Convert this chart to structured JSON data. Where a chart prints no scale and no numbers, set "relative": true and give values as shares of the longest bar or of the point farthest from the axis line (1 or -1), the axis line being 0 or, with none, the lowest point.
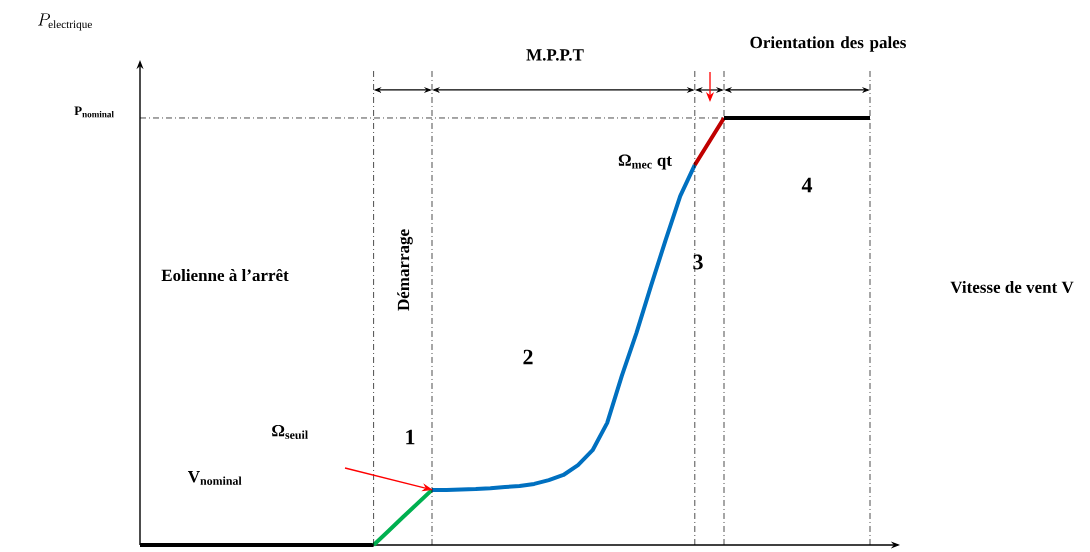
{
  "chart_data": {
    "type": "line",
    "relative": true,
    "xlabel": "Vitesse de vent V",
    "categories": [
      null,
      null,
      null,
      null,
      null,
      null,
      null,
      null,
      null,
      null,
      null,
      null,
      null,
      null,
      null,
      null,
      null,
      null,
      null,
      null,
      null,
      null,
      null,
      null,
      null,
      null,
      null,
      null,
      null,
      null,
      null,
      null,
      null,
      null,
      null,
      null,
      null,
      null,
      null,
      null,
      null,
      null,
      null,
      null,
      null,
      null,
      null,
      null,
      null,
      null,
      null
    ],
    "series": [
      {
        "color": "#000000",
        "values": [
          0,
          0,
          0,
          0,
          0,
          0,
          0,
          0,
          0,
          0,
          0,
          0,
          0,
          0,
          0,
          0,
          0,
          null,
          null,
          null,
          null,
          null,
          null,
          null,
          null,
          null,
          null,
          null,
          null,
          null,
          null,
          null,
          null,
          null,
          null,
          null,
          null,
          null,
          null,
          null,
          null,
          null,
          null,
          null,
          null,
          null,
          null,
          null,
          null,
          null,
          null
        ]
      },
      {
        "color": "#00b050",
        "values": [
          null,
          null,
          null,
          null,
          null,
          null,
          null,
          null,
          null,
          null,
          null,
          null,
          null,
          null,
          null,
          null,
          0,
          0.032,
          0.065,
          0.097,
          0.129,
          null,
          null,
          null,
          null,
          null,
          null,
          null,
          null,
          null,
          null,
          null,
          null,
          null,
          null,
          null,
          null,
          null,
          null,
          null,
          null,
          null,
          null,
          null,
          null,
          null,
          null,
          null,
          null,
          null,
          null
        ]
      },
      {
        "color": "#0070c0",
        "values": [
          null,
          null,
          null,
          null,
          null,
          null,
          null,
          null,
          null,
          null,
          null,
          null,
          null,
          null,
          null,
          null,
          null,
          null,
          null,
          null,
          0.129,
          0.129,
          0.13,
          0.131,
          0.133,
          0.136,
          0.138,
          0.143,
          0.152,
          0.164,
          0.187,
          0.222,
          0.286,
          0.396,
          0.496,
          0.607,
          0.714,
          0.817,
          0.89,
          null,
          null,
          null,
          null,
          null,
          null,
          null,
          null,
          null,
          null,
          null,
          null
        ]
      },
      {
        "color": "#c00000",
        "values": [
          null,
          null,
          null,
          null,
          null,
          null,
          null,
          null,
          null,
          null,
          null,
          null,
          null,
          null,
          null,
          null,
          null,
          null,
          null,
          null,
          null,
          null,
          null,
          null,
          null,
          null,
          null,
          null,
          null,
          null,
          null,
          null,
          null,
          null,
          null,
          null,
          null,
          null,
          0.89,
          0.945,
          1,
          null,
          null,
          null,
          null,
          null,
          null,
          null,
          null,
          null,
          null
        ]
      },
      {
        "color": "#000000",
        "values": [
          null,
          null,
          null,
          null,
          null,
          null,
          null,
          null,
          null,
          null,
          null,
          null,
          null,
          null,
          null,
          null,
          null,
          null,
          null,
          null,
          null,
          null,
          null,
          null,
          null,
          null,
          null,
          null,
          null,
          null,
          null,
          null,
          null,
          null,
          null,
          null,
          null,
          null,
          null,
          null,
          1,
          1,
          1,
          1,
          1,
          1,
          1,
          1,
          1,
          1,
          1
        ]
      }
    ],
    "ref_lines": [
      {
        "axis": "y",
        "value": 1,
        "label": "P$_{nominal}$",
        "color": "#000000",
        "line_style": "dashdot"
      }
    ],
    "annotations": [
      "Eolienne à l’arrêt",
      "Démarrage",
      "M.P.P.T",
      "Orientation des pales",
      "1",
      "2",
      "3",
      "4",
      "Ω$_{seuil}$",
      "V$_{nominal}$",
      "Ω$_{mec}$ qt",
      "P_{\\mathrm{electrique}}"
    ]
  }
}
